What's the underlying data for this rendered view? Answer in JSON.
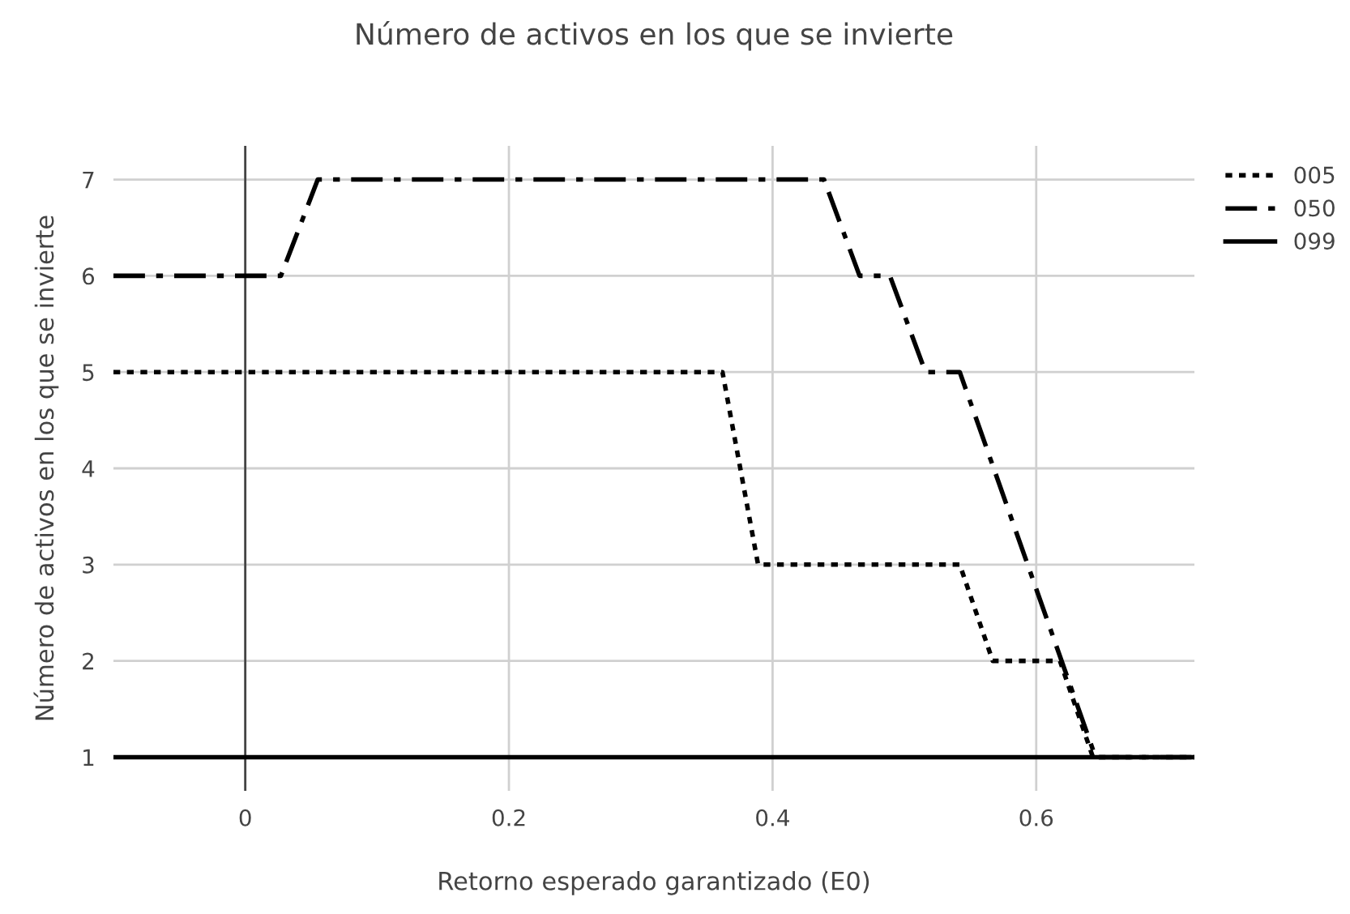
{
  "chart_data": {
    "type": "line",
    "title": "Número de activos en los que se invierte",
    "xlabel": "Retorno esperado garantizado (E0)",
    "ylabel": "Número de activos en los que se invierte",
    "xlim": [
      -0.1,
      0.72
    ],
    "xticks": [
      0,
      0.2,
      0.4,
      0.6
    ],
    "ylim": [
      0.65,
      7.35
    ],
    "yticks": [
      1,
      2,
      3,
      4,
      5,
      6,
      7
    ],
    "grid": true,
    "legend": "top right",
    "ref_lines": [
      {
        "axis": "x",
        "value": 0,
        "color": "#444444"
      }
    ],
    "series": [
      {
        "name": "005",
        "color": "#000000",
        "line_style": "dotted",
        "x": [
          -0.1,
          0.362,
          0.389,
          0.542,
          0.567,
          0.618,
          0.643,
          0.72
        ],
        "values": [
          5,
          5,
          3,
          3,
          2,
          2,
          1,
          1
        ]
      },
      {
        "name": "050",
        "color": "#000000",
        "line_style": "dashdot",
        "x": [
          -0.1,
          0.027,
          0.055,
          0.439,
          0.466,
          0.489,
          0.516,
          0.542,
          0.645,
          0.72
        ],
        "values": [
          6,
          6,
          7,
          7,
          6,
          6,
          5,
          5,
          1,
          1
        ]
      },
      {
        "name": "099",
        "color": "#000000",
        "line_style": "solid",
        "x": [
          -0.1,
          0.72
        ],
        "values": [
          1,
          1
        ]
      }
    ]
  }
}
